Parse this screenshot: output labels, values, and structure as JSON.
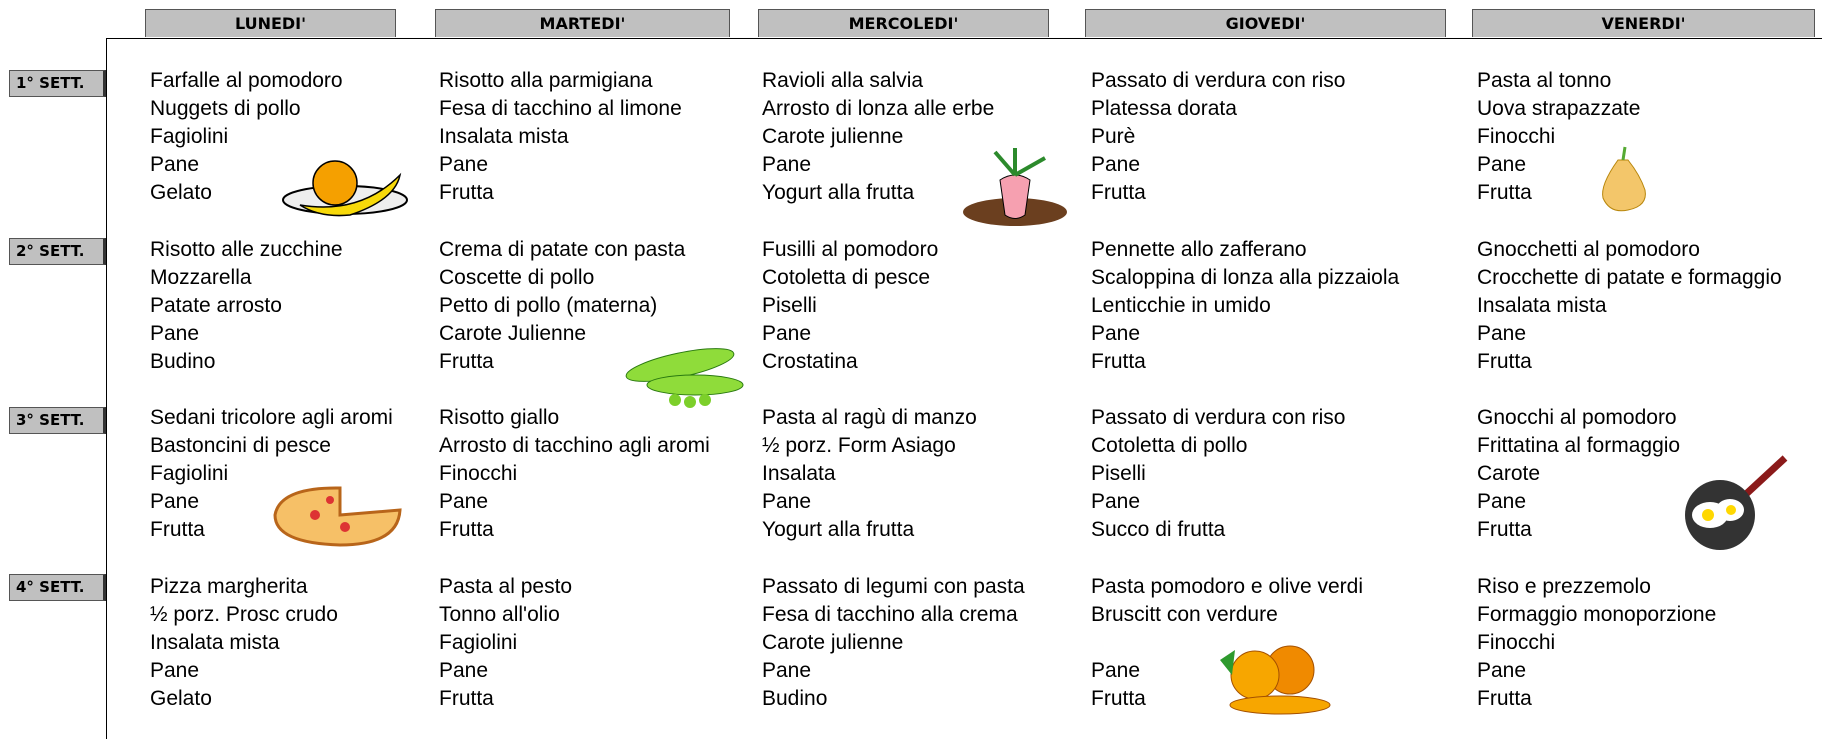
{
  "days": [
    "LUNEDI'",
    "MARTEDI'",
    "MERCOLEDI'",
    "GIOVEDI'",
    "VENERDI'"
  ],
  "weeks": [
    "1° SETT.",
    "2° SETT.",
    "3° SETT.",
    "4° SETT."
  ],
  "menu": [
    [
      [
        "Farfalle al pomodoro",
        "Nuggets di pollo",
        "Fagiolini",
        "Pane",
        "Gelato"
      ],
      [
        "Risotto alla parmigiana",
        "Fesa di tacchino al limone",
        "Insalata mista",
        "Pane",
        "Frutta"
      ],
      [
        "Ravioli alla salvia",
        "Arrosto di lonza alle erbe",
        "Carote julienne",
        "Pane",
        "Yogurt alla frutta"
      ],
      [
        "Passato di verdura con riso",
        "Platessa dorata",
        "Purè",
        "Pane",
        "Frutta"
      ],
      [
        "Pasta al tonno",
        "Uova strapazzate",
        "Finocchi",
        "Pane",
        "Frutta"
      ]
    ],
    [
      [
        "Risotto alle zucchine",
        "Mozzarella",
        "Patate arrosto",
        "Pane",
        "Budino"
      ],
      [
        "Crema di patate con pasta",
        "Coscette di pollo",
        "Petto di pollo (materna)",
        "Carote Julienne",
        "Frutta"
      ],
      [
        "Fusilli al pomodoro",
        "Cotoletta di pesce",
        "Piselli",
        "Pane",
        "Crostatina"
      ],
      [
        "Pennette allo zafferano",
        "Scaloppina di lonza alla pizzaiola",
        "Lenticchie in umido",
        "Pane",
        "Frutta"
      ],
      [
        "Gnocchetti al pomodoro",
        "Crocchette di patate e formaggio",
        "Insalata mista",
        "Pane",
        "Frutta"
      ]
    ],
    [
      [
        "Sedani tricolore agli aromi",
        "Bastoncini di pesce",
        "Fagiolini",
        "Pane",
        "Frutta"
      ],
      [
        "Risotto giallo",
        "Arrosto di tacchino agli aromi",
        "Finocchi",
        "Pane",
        "Frutta"
      ],
      [
        "Pasta al ragù di manzo",
        "½ porz. Form Asiago",
        "Insalata",
        "Pane",
        "Yogurt alla frutta"
      ],
      [
        "Passato di verdura con riso",
        "Cotoletta di pollo",
        "Piselli",
        "Pane",
        "Succo di frutta"
      ],
      [
        "Gnocchi al pomodoro",
        "Frittatina al formaggio",
        "Carote",
        "Pane",
        "Frutta"
      ]
    ],
    [
      [
        "Pizza margherita",
        "½ porz. Prosc crudo",
        "Insalata mista",
        "Pane",
        "Gelato"
      ],
      [
        "Pasta al pesto",
        "Tonno all'olio",
        "Fagiolini",
        "Pane",
        "Frutta"
      ],
      [
        "Passato di legumi con pasta",
        "Fesa di tacchino alla crema",
        "Carote julienne",
        "Pane",
        "Budino"
      ],
      [
        "Pasta pomodoro e olive verdi",
        "Bruscitt con verdure",
        null,
        "Pane",
        "Frutta"
      ],
      [
        "Riso e prezzemolo",
        "Formaggio monoporzione",
        "Finocchi",
        "Pane",
        "Frutta"
      ]
    ]
  ]
}
